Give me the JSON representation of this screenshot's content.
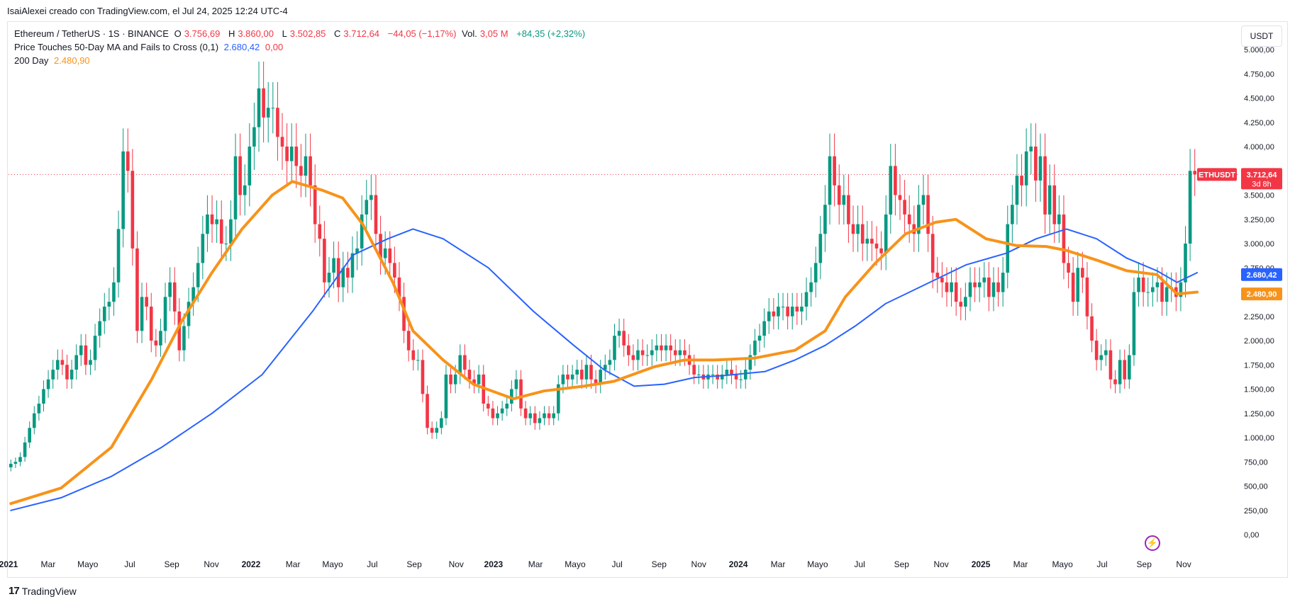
{
  "header": {
    "credit": "IsaiAlexei creado con TradingView.com, el Jul 24, 2025 12:24 UTC-4"
  },
  "legend": {
    "symbol": "Ethereum / TetherUS · 1S · BINANCE",
    "o_label": "O",
    "o": "3.756,69",
    "h_label": "H",
    "h": "3.860,00",
    "l_label": "L",
    "l": "3.502,85",
    "c_label": "C",
    "c": "3.712,64",
    "change": "−44,05 (−1,17%)",
    "vol_label": "Vol.",
    "vol": "3,05 M",
    "vol_change": "+84,35 (+2,32%)",
    "indicator1_name": "Price Touches 50-Day MA and Fails to Cross (0,1)",
    "indicator1_v1": "2.680,42",
    "indicator1_v2": "0,00",
    "indicator2_name": "200 Day",
    "indicator2_v1": "2.480,90"
  },
  "currency_button": "USDT",
  "footer": {
    "brand_mark": "17",
    "brand": "TradingView"
  },
  "icons": {
    "lightning": "lightning-icon"
  },
  "colors": {
    "up": "#089981",
    "down": "#f23645",
    "ma50": "#2962ff",
    "ma200": "#f7931a",
    "last_price": "#f23645"
  },
  "chart_data": {
    "type": "candlestick",
    "y_axis": {
      "min": 0,
      "max": 5000,
      "side": "right",
      "ticks": [
        0,
        250,
        500,
        750,
        1000,
        1250,
        1500,
        1750,
        2000,
        2250,
        2500,
        2750,
        3000,
        3250,
        3500,
        3750,
        4000,
        4250,
        4500,
        4750,
        5000
      ],
      "tick_labels": [
        "0,00",
        "250,00",
        "500,00",
        "750,00",
        "1.000,00",
        "1.250,00",
        "1.500,00",
        "1.750,00",
        "2.000,00",
        "2.250,00",
        "2.500,00",
        "2.750,00",
        "3.000,00",
        "3.250,00",
        "3.500,00",
        "3.750,00",
        "4.000,00",
        "4.250,00",
        "4.500,00",
        "4.750,00",
        "5.000,00"
      ]
    },
    "x_axis": {
      "labels": [
        {
          "t": "2021",
          "w": 0,
          "bold": true
        },
        {
          "t": "Mar",
          "w": 8.5,
          "bold": false
        },
        {
          "t": "Mayo",
          "w": 17,
          "bold": false
        },
        {
          "t": "Jul",
          "w": 26,
          "bold": false
        },
        {
          "t": "Sep",
          "w": 35,
          "bold": false
        },
        {
          "t": "Nov",
          "w": 43.5,
          "bold": false
        },
        {
          "t": "2022",
          "w": 52,
          "bold": true
        },
        {
          "t": "Mar",
          "w": 61,
          "bold": false
        },
        {
          "t": "Mayo",
          "w": 69.5,
          "bold": false
        },
        {
          "t": "Jul",
          "w": 78,
          "bold": false
        },
        {
          "t": "Sep",
          "w": 87,
          "bold": false
        },
        {
          "t": "Nov",
          "w": 96,
          "bold": false
        },
        {
          "t": "2023",
          "w": 104,
          "bold": true
        },
        {
          "t": "Mar",
          "w": 113,
          "bold": false
        },
        {
          "t": "Mayo",
          "w": 121.5,
          "bold": false
        },
        {
          "t": "Jul",
          "w": 130.5,
          "bold": false
        },
        {
          "t": "Sep",
          "w": 139.5,
          "bold": false
        },
        {
          "t": "Nov",
          "w": 148,
          "bold": false
        },
        {
          "t": "2024",
          "w": 156.5,
          "bold": true
        },
        {
          "t": "Mar",
          "w": 165,
          "bold": false
        },
        {
          "t": "Mayo",
          "w": 173.5,
          "bold": false
        },
        {
          "t": "Jul",
          "w": 182.5,
          "bold": false
        },
        {
          "t": "Sep",
          "w": 191.5,
          "bold": false
        },
        {
          "t": "Nov",
          "w": 200,
          "bold": false
        },
        {
          "t": "2025",
          "w": 208.5,
          "bold": true
        },
        {
          "t": "Mar",
          "w": 217,
          "bold": false
        },
        {
          "t": "Mayo",
          "w": 226,
          "bold": false
        },
        {
          "t": "Jul",
          "w": 234.5,
          "bold": false
        },
        {
          "t": "Sep",
          "w": 243.5,
          "bold": false
        },
        {
          "t": "Nov",
          "w": 252,
          "bold": false
        }
      ]
    },
    "weeks_total": 264,
    "candles_close": [
      730,
      750,
      800,
      950,
      1100,
      1250,
      1350,
      1500,
      1600,
      1700,
      1800,
      1750,
      1600,
      1700,
      1850,
      1950,
      1750,
      1800,
      2050,
      2200,
      2350,
      2400,
      2600,
      3150,
      3950,
      3750,
      2950,
      2100,
      2450,
      2350,
      2000,
      1950,
      2100,
      2450,
      2600,
      2300,
      1900,
      2150,
      2400,
      2550,
      2800,
      3100,
      3300,
      3200,
      3250,
      3000,
      3000,
      3250,
      3900,
      3500,
      3600,
      4000,
      4200,
      4600,
      4300,
      4400,
      4400,
      4100,
      4000,
      3850,
      4000,
      3800,
      3700,
      3900,
      3600,
      3200,
      3050,
      2600,
      2700,
      2850,
      2550,
      2750,
      2650,
      2900,
      2950,
      3300,
      3450,
      3500,
      3100,
      2850,
      2950,
      2800,
      2650,
      2450,
      2100,
      1900,
      1800,
      1800,
      1450,
      1100,
      1050,
      1100,
      1200,
      1650,
      1550,
      1650,
      1850,
      1700,
      1600,
      1550,
      1650,
      1350,
      1300,
      1200,
      1250,
      1300,
      1350,
      1500,
      1600,
      1300,
      1200,
      1250,
      1150,
      1200,
      1250,
      1200,
      1250,
      1550,
      1650,
      1600,
      1650,
      1700,
      1600,
      1750,
      1600,
      1550,
      1700,
      1750,
      1800,
      2050,
      2100,
      1950,
      1850,
      1800,
      1900,
      1850,
      1850,
      1900,
      1950,
      1900,
      1950,
      1900,
      1850,
      1900,
      1850,
      1750,
      1650,
      1650,
      1600,
      1650,
      1650,
      1600,
      1650,
      1700,
      1650,
      1600,
      1600,
      1700,
      1850,
      2000,
      2050,
      2200,
      2300,
      2250,
      2350,
      2350,
      2250,
      2350,
      2300,
      2350,
      2500,
      2600,
      2800,
      3100,
      3400,
      3900,
      3600,
      3400,
      3500,
      3200,
      3100,
      3200,
      3000,
      3050,
      3000,
      2950,
      2900,
      3300,
      3800,
      3500,
      3450,
      3300,
      3200,
      3100,
      3400,
      3500,
      3100,
      2700,
      2650,
      2600,
      2500,
      2600,
      2400,
      2350,
      2450,
      2600,
      2550,
      2600,
      2650,
      2450,
      2600,
      2500,
      2700,
      3200,
      3400,
      3700,
      3600,
      3950,
      4000,
      3650,
      3900,
      3300,
      3600,
      3200,
      3300,
      2800,
      2700,
      2400,
      2750,
      2650,
      2250,
      2000,
      1800,
      1850,
      1900,
      1600,
      1550,
      1800,
      1600,
      1850,
      2500,
      2650,
      2500,
      2500,
      2550,
      2600,
      2400,
      2550,
      2550,
      2450,
      2600,
      3000,
      3750,
      3712.64
    ],
    "series": [
      {
        "name": "Price Touches 50-Day MA and Fails to Cross (0,1)",
        "color": "#2962ff",
        "last": 2680.42,
        "points": [
          [
            0,
            250
          ],
          [
            10,
            380
          ],
          [
            20,
            600
          ],
          [
            30,
            900
          ],
          [
            40,
            1250
          ],
          [
            50,
            1650
          ],
          [
            60,
            2300
          ],
          [
            68,
            2880
          ],
          [
            75,
            3050
          ],
          [
            80,
            3150
          ],
          [
            86,
            3050
          ],
          [
            95,
            2750
          ],
          [
            104,
            2300
          ],
          [
            112,
            1950
          ],
          [
            118,
            1700
          ],
          [
            124,
            1530
          ],
          [
            130,
            1550
          ],
          [
            136,
            1620
          ],
          [
            142,
            1640
          ],
          [
            150,
            1680
          ],
          [
            156,
            1800
          ],
          [
            162,
            1950
          ],
          [
            168,
            2150
          ],
          [
            174,
            2380
          ],
          [
            182,
            2580
          ],
          [
            190,
            2780
          ],
          [
            198,
            2900
          ],
          [
            204,
            3050
          ],
          [
            210,
            3150
          ],
          [
            216,
            3050
          ],
          [
            222,
            2850
          ],
          [
            228,
            2720
          ],
          [
            232,
            2600
          ],
          [
            236,
            2700
          ]
        ]
      },
      {
        "name": "200 Day",
        "color": "#f7931a",
        "last": 2480.9,
        "points": [
          [
            0,
            320
          ],
          [
            10,
            480
          ],
          [
            20,
            900
          ],
          [
            28,
            1600
          ],
          [
            34,
            2200
          ],
          [
            40,
            2700
          ],
          [
            46,
            3150
          ],
          [
            52,
            3500
          ],
          [
            56,
            3640
          ],
          [
            62,
            3550
          ],
          [
            66,
            3470
          ],
          [
            70,
            3200
          ],
          [
            76,
            2600
          ],
          [
            80,
            2100
          ],
          [
            86,
            1800
          ],
          [
            92,
            1550
          ],
          [
            100,
            1400
          ],
          [
            106,
            1480
          ],
          [
            114,
            1530
          ],
          [
            120,
            1580
          ],
          [
            128,
            1730
          ],
          [
            134,
            1800
          ],
          [
            140,
            1800
          ],
          [
            148,
            1820
          ],
          [
            156,
            1900
          ],
          [
            162,
            2100
          ],
          [
            166,
            2450
          ],
          [
            172,
            2800
          ],
          [
            178,
            3100
          ],
          [
            184,
            3220
          ],
          [
            188,
            3250
          ],
          [
            194,
            3050
          ],
          [
            200,
            2980
          ],
          [
            206,
            2970
          ],
          [
            210,
            2930
          ],
          [
            216,
            2830
          ],
          [
            222,
            2720
          ],
          [
            228,
            2680
          ],
          [
            232,
            2480
          ],
          [
            236,
            2500
          ]
        ]
      }
    ],
    "last_price": {
      "label": "ETHUSDT",
      "value": "3.712,64",
      "countdown": "3d 8h",
      "level": 3712.64
    },
    "ma50_label": "2.680,42",
    "ma200_label": "2.480,90"
  }
}
